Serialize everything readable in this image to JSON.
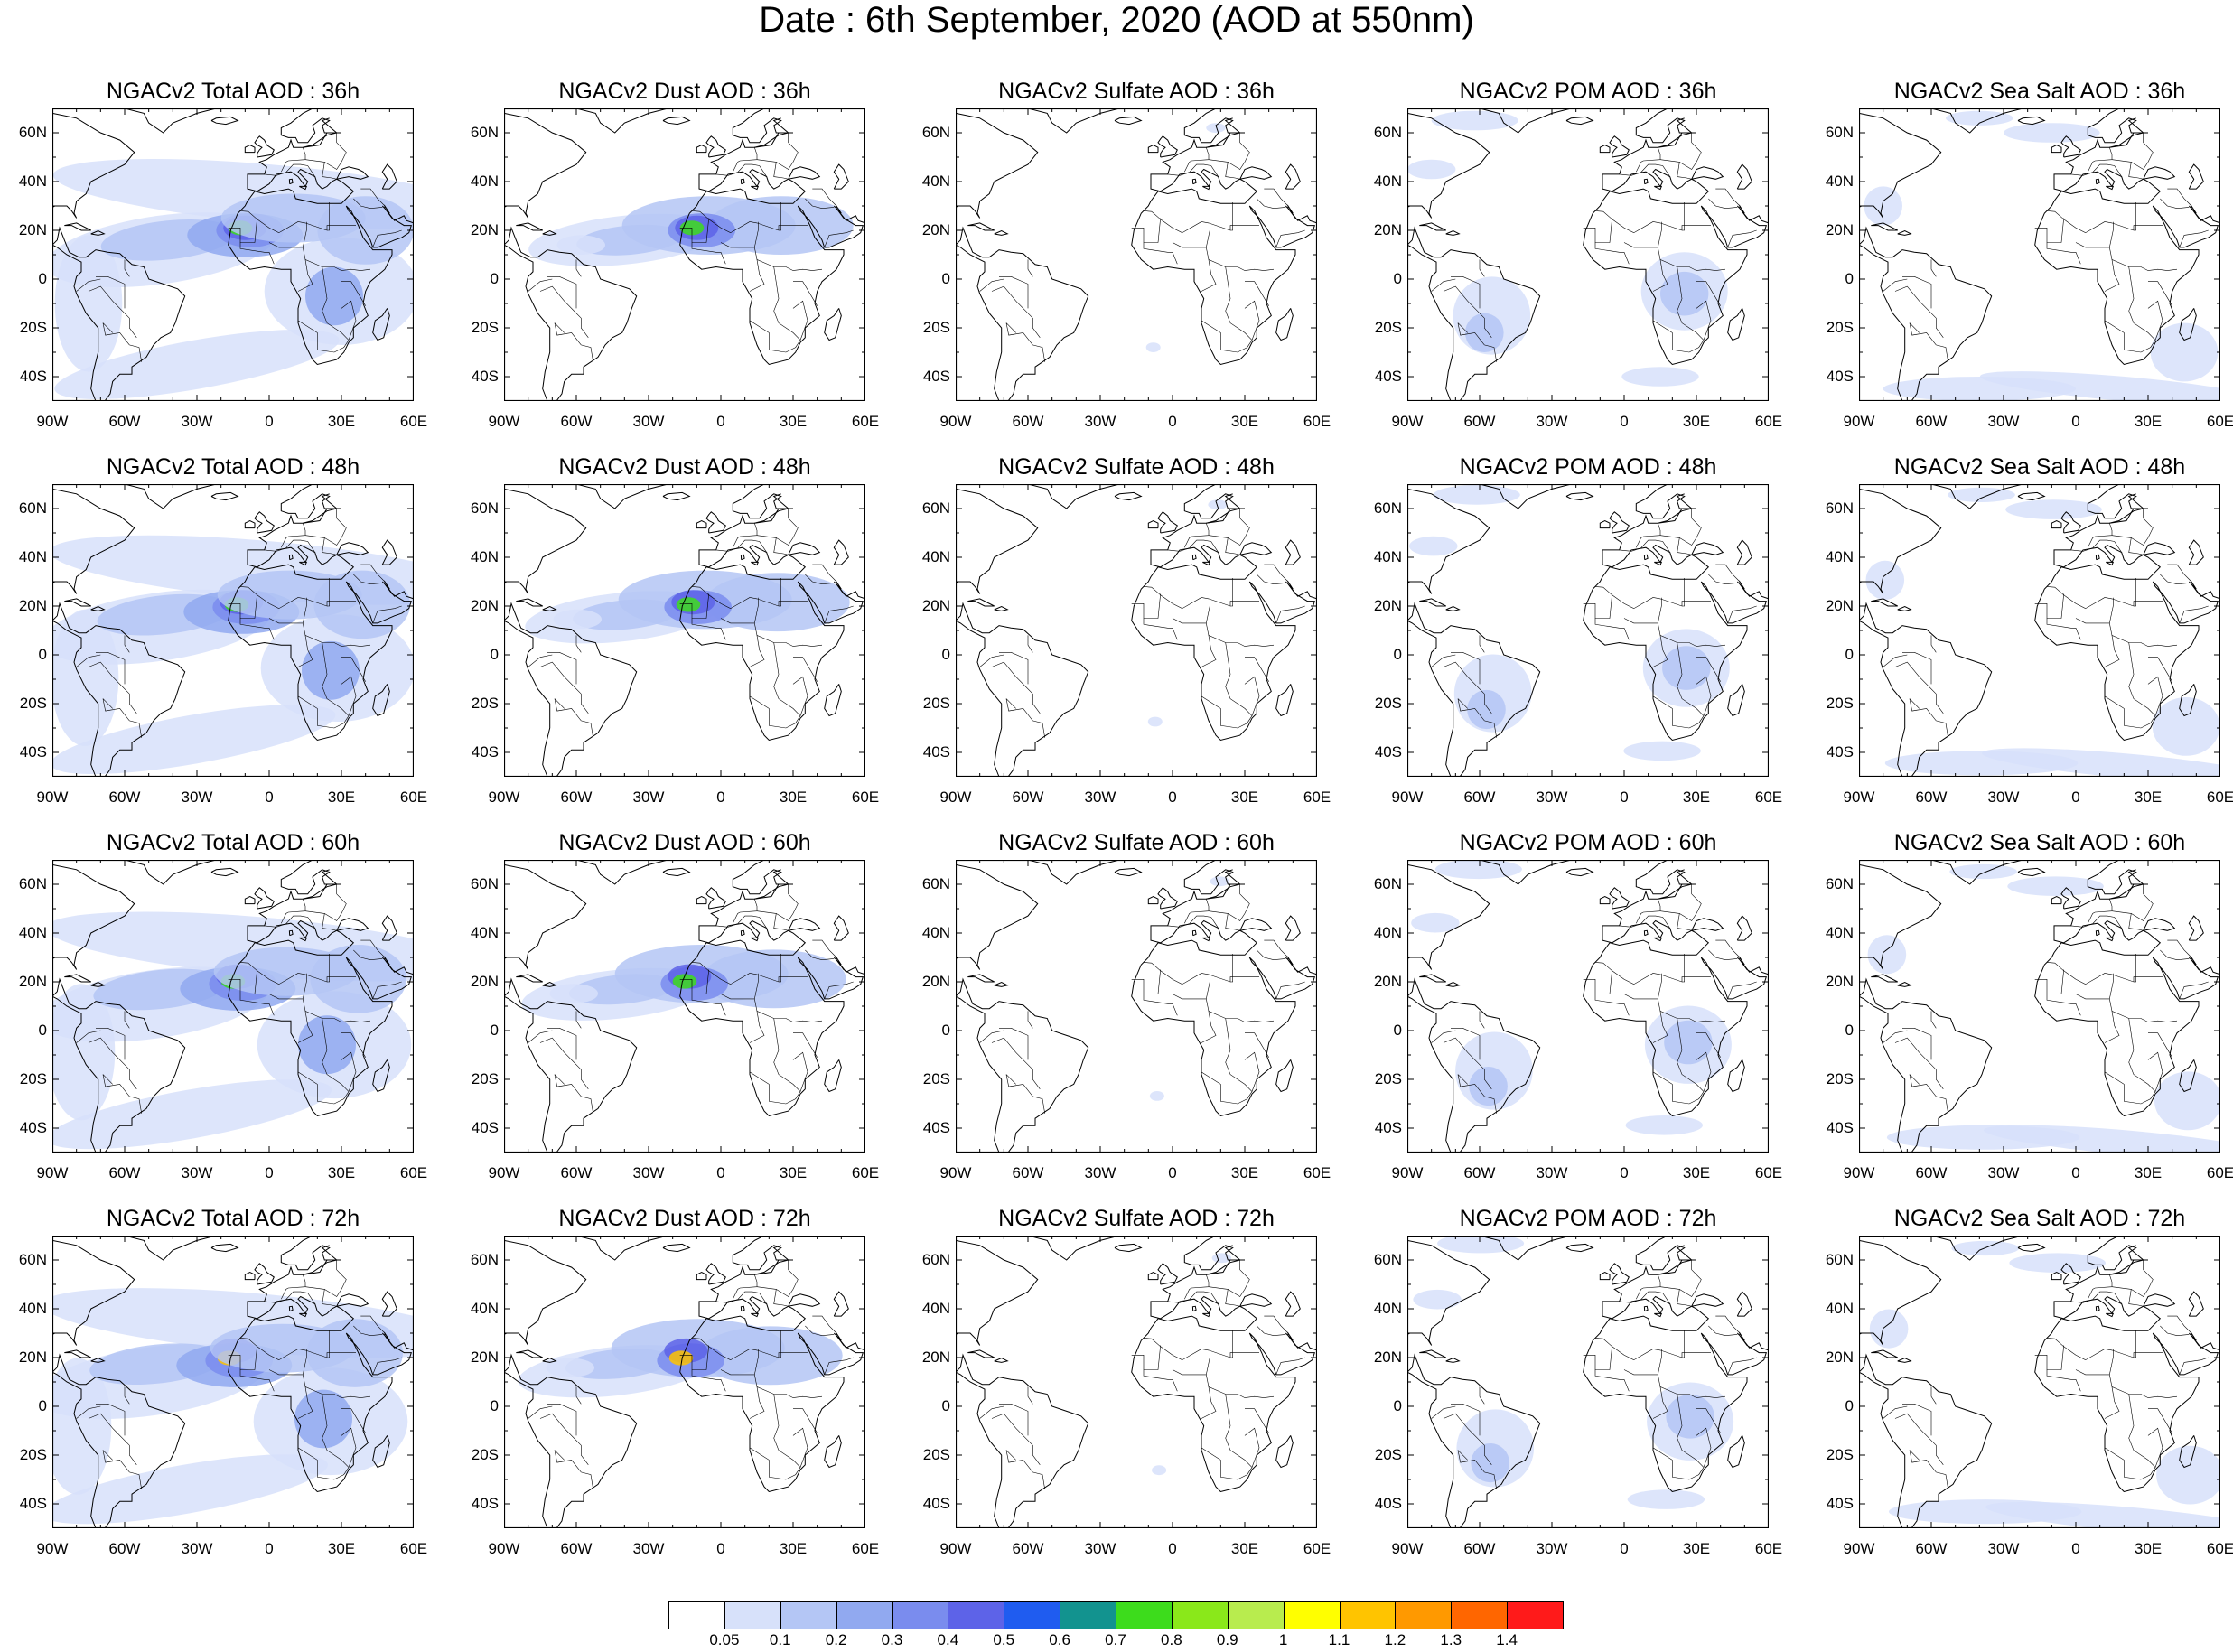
{
  "title": "Date : 6th September, 2020 (AOD at 550nm)",
  "panel_rows": [
    [
      "NGACv2 Total AOD : 36h",
      "NGACv2 Dust AOD : 36h",
      "NGACv2 Sulfate AOD : 36h",
      "NGACv2 POM AOD : 36h",
      "NGACv2 Sea Salt AOD : 36h"
    ],
    [
      "NGACv2 Total AOD : 48h",
      "NGACv2 Dust AOD : 48h",
      "NGACv2 Sulfate AOD : 48h",
      "NGACv2 POM AOD : 48h",
      "NGACv2 Sea Salt AOD : 48h"
    ],
    [
      "NGACv2 Total AOD : 60h",
      "NGACv2 Dust AOD : 60h",
      "NGACv2 Sulfate AOD : 60h",
      "NGACv2 POM AOD : 60h",
      "NGACv2 Sea Salt AOD : 60h"
    ],
    [
      "NGACv2 Total AOD : 72h",
      "NGACv2 Dust AOD : 72h",
      "NGACv2 Sulfate AOD : 72h",
      "NGACv2 POM AOD : 72h",
      "NGACv2 Sea Salt  AOD : 72h"
    ]
  ],
  "lat_ticks": [
    "60N",
    "40N",
    "20N",
    "0",
    "20S",
    "40S"
  ],
  "lon_ticks": [
    "90W",
    "60W",
    "30W",
    "0",
    "30E",
    "60E"
  ],
  "map_extent": {
    "lon_min": -90,
    "lon_max": 60,
    "lat_min": -50,
    "lat_max": 70
  },
  "colorbar": {
    "colors": [
      "#ffffff",
      "#d7e1fa",
      "#b4c6f5",
      "#91a9f0",
      "#7a8cee",
      "#5d63e8",
      "#1f5cf0",
      "#12938f",
      "#3ddc1c",
      "#8ae81a",
      "#b8ec4e",
      "#ffff00",
      "#ffc400",
      "#ff9900",
      "#ff6600",
      "#ff1a1a"
    ],
    "labels": [
      "0.05",
      "0.1",
      "0.2",
      "0.3",
      "0.4",
      "0.5",
      "0.6",
      "0.7",
      "0.8",
      "0.9",
      "1",
      "1.1",
      "1.2",
      "1.3",
      "1.4"
    ]
  },
  "colors": {
    "coastline": "#000000",
    "borders": "#000000"
  }
}
